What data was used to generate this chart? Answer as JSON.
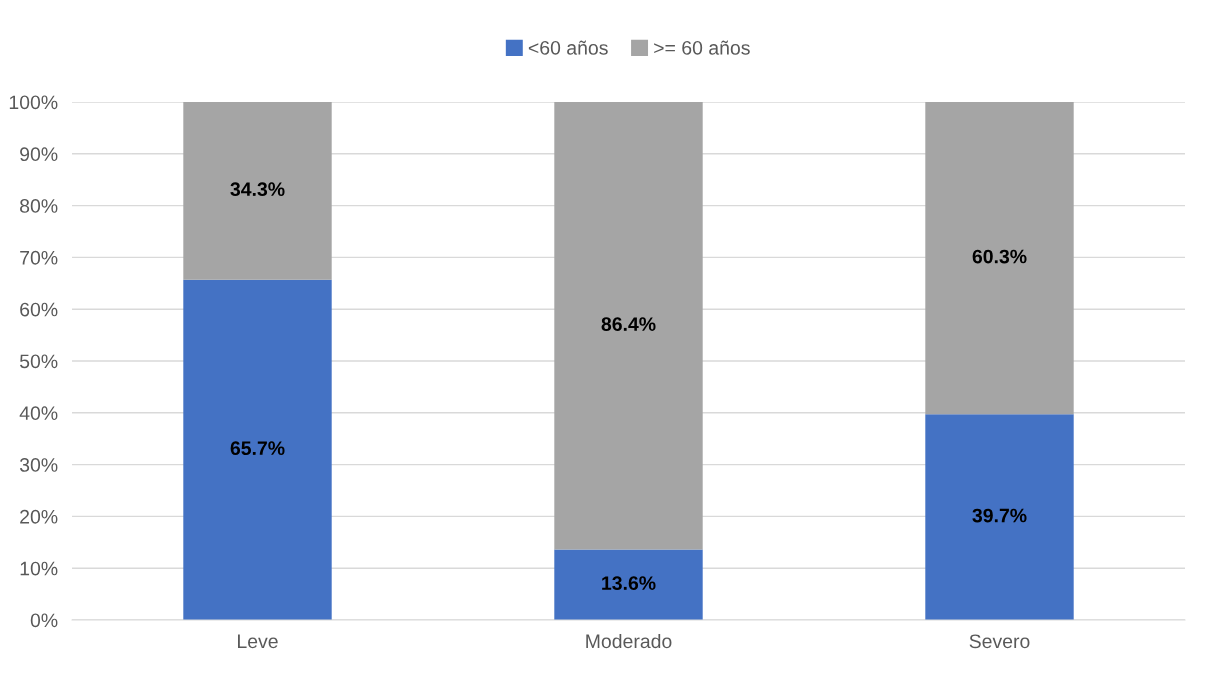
{
  "chart_data": {
    "type": "bar",
    "stacked": true,
    "categories": [
      "Leve",
      "Moderado",
      "Severo"
    ],
    "series": [
      {
        "name": "<60 años",
        "color": "#4472c4",
        "values": [
          65.7,
          13.6,
          39.7
        ],
        "value_labels": [
          "65.7%",
          "13.6%",
          "39.7%"
        ]
      },
      {
        "name": ">= 60 años",
        "color": "#a5a5a5",
        "values": [
          34.3,
          86.4,
          60.3
        ],
        "value_labels": [
          "34.3%",
          "86.4%",
          "60.3%"
        ]
      }
    ],
    "ylim": [
      0,
      100
    ],
    "yticks": [
      {
        "value": 0,
        "label": "0%"
      },
      {
        "value": 10,
        "label": "10%"
      },
      {
        "value": 20,
        "label": "20%"
      },
      {
        "value": 30,
        "label": "30%"
      },
      {
        "value": 40,
        "label": "40%"
      },
      {
        "value": 50,
        "label": "50%"
      },
      {
        "value": 60,
        "label": "60%"
      },
      {
        "value": 70,
        "label": "70%"
      },
      {
        "value": 80,
        "label": "80%"
      },
      {
        "value": 90,
        "label": "90%"
      },
      {
        "value": 100,
        "label": "100%"
      }
    ],
    "grid": "y",
    "legend": "top"
  }
}
